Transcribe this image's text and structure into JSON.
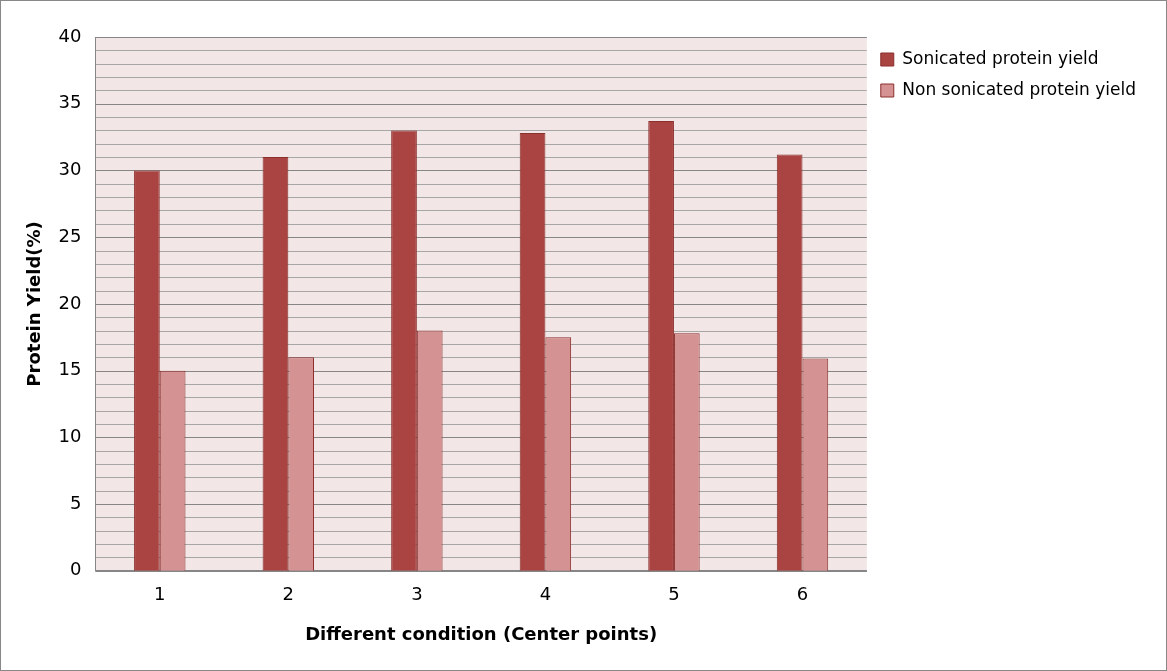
{
  "chart_data": {
    "type": "bar",
    "xlabel": "Different condition (Center points)",
    "ylabel": "Protein Yield(%)",
    "categories": [
      "1",
      "2",
      "3",
      "4",
      "5",
      "6"
    ],
    "series": [
      {
        "name": "Sonicated protein yield",
        "color": "#a94442",
        "values": [
          30,
          31,
          33,
          32.8,
          33.7,
          31.2
        ]
      },
      {
        "name": "Non sonicated protein yield",
        "color": "#d49392",
        "values": [
          15,
          16,
          18,
          17.5,
          17.8,
          15.9
        ]
      }
    ],
    "ylim": [
      0,
      40
    ],
    "yticks": [
      0,
      5,
      10,
      15,
      20,
      25,
      30,
      35,
      40
    ],
    "grid": "y",
    "legend": "right"
  }
}
